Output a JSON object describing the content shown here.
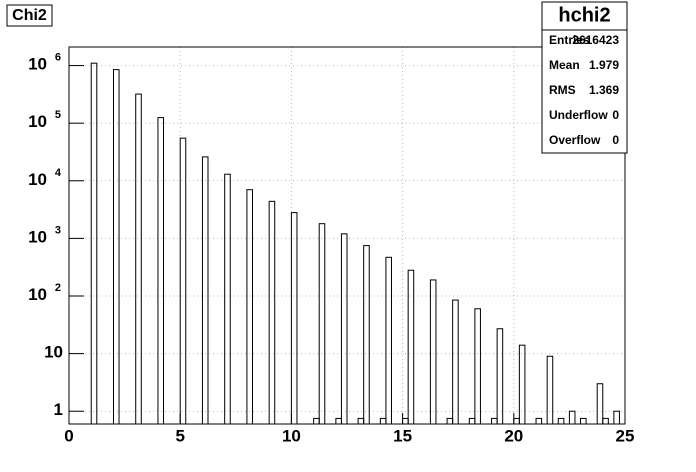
{
  "chart_data": {
    "type": "histogram",
    "title": "Chi2",
    "bins": [
      0,
      0.25,
      0.5,
      0.75,
      1,
      1.25,
      1.5,
      1.75,
      2,
      2.25,
      2.5,
      2.75,
      3,
      3.25,
      3.5,
      3.75,
      4,
      4.25,
      4.5,
      4.75,
      5,
      5.25,
      5.5,
      5.75,
      6,
      6.25,
      6.5,
      6.75,
      7,
      7.25,
      7.5,
      7.75,
      8,
      8.25,
      8.5,
      8.75,
      9,
      9.25,
      9.5,
      9.75,
      10,
      10.25,
      10.5,
      10.75,
      11,
      11.25,
      11.5,
      11.75,
      12,
      12.25,
      12.5,
      12.75,
      13,
      13.25,
      13.5,
      13.75,
      14,
      14.25,
      14.5,
      14.75,
      15,
      15.25,
      15.5,
      15.75,
      16,
      16.25,
      16.5,
      16.75,
      17,
      17.25,
      17.5,
      17.75,
      18,
      18.25,
      18.5,
      18.75,
      19,
      19.25,
      19.5,
      19.75,
      20,
      20.25,
      20.5,
      20.75,
      21,
      21.25,
      21.5,
      21.75,
      22,
      22.25,
      22.5,
      22.75,
      23,
      23.25,
      23.5,
      23.75,
      24,
      24.25,
      24.5,
      24.75,
      25
    ],
    "counts": [
      0,
      0,
      0,
      0,
      1100000,
      0,
      0,
      0,
      850000,
      0,
      0,
      0,
      320000,
      0,
      0,
      0,
      125000,
      0,
      0,
      0,
      55000,
      0,
      0,
      0,
      26000,
      0,
      0,
      0,
      13000,
      0,
      0,
      0,
      7000,
      0,
      0,
      0,
      4400,
      0,
      0,
      0,
      2800,
      0,
      0,
      0,
      0.75,
      1800,
      0,
      0,
      0.75,
      1200,
      0,
      0,
      0.75,
      750,
      0,
      0,
      0.75,
      470,
      0,
      0,
      0.75,
      280,
      0,
      0,
      0,
      190,
      0,
      0,
      0.75,
      85,
      0,
      0,
      0.75,
      60,
      0,
      0,
      0.75,
      27,
      0,
      0,
      0.75,
      14,
      0,
      0,
      0.75,
      0,
      9,
      0,
      0.75,
      0,
      1,
      0,
      0.75,
      0,
      0,
      3,
      0.75,
      0,
      1,
      0
    ],
    "color": "#000000",
    "xlim": [
      0,
      25
    ],
    "xticks": [
      0,
      5,
      10,
      15,
      20,
      25
    ],
    "ylim": [
      0.6,
      2100000
    ],
    "log_y": true,
    "yticks": [
      1,
      10,
      {
        "value": 100,
        "label": "10",
        "power": "2"
      },
      {
        "value": 1000,
        "label": "10",
        "power": "3"
      },
      {
        "value": 10000,
        "label": "10",
        "power": "4"
      },
      {
        "value": 100000,
        "label": "10",
        "power": "5"
      },
      {
        "value": 1000000,
        "label": "10",
        "power": "6"
      }
    ],
    "grid": true,
    "stats": {
      "title": "hchi2",
      "rows": [
        [
          "Entries",
          2616423
        ],
        [
          "Mean",
          1.979
        ],
        [
          "RMS",
          1.369
        ],
        [
          "Underflow",
          0
        ],
        [
          "Overflow",
          0
        ]
      ]
    }
  }
}
